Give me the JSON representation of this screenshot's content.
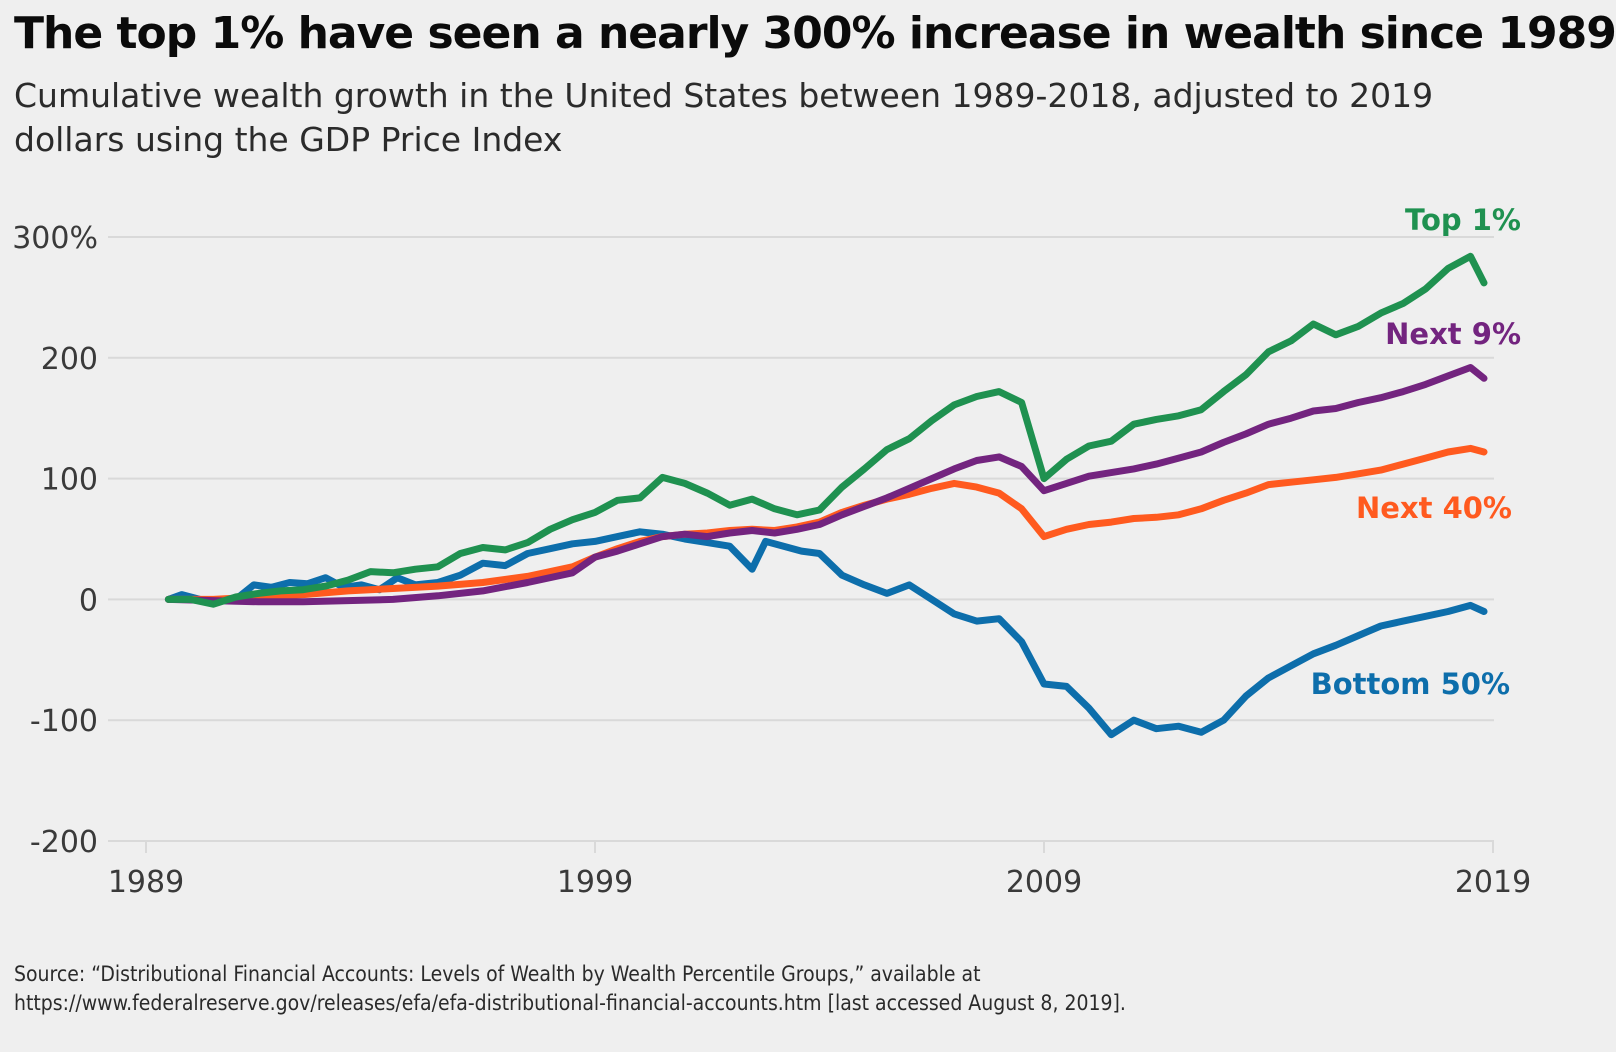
{
  "title": "The top 1% have seen a nearly 300% increase in wealth since 1989",
  "subtitle": "Cumulative wealth growth in the United States between 1989-2018, adjusted to 2019 dollars using the GDP Price Index",
  "source": {
    "line1": "Source: “Distributional Financial Accounts: Levels of Wealth by Wealth Percentile Groups,” available at",
    "line2": "https://www.federalreserve.gov/releases/efa/efa-distributional-financial-accounts.htm [last accessed August 8, 2019]."
  },
  "colors": {
    "background": "#efefef",
    "grid": "#d9d9d9",
    "axis_text": "#3a3a3a",
    "top1": "#1f9150",
    "next9": "#73247f",
    "next40": "#ff5a1f",
    "bottom50": "#0d6eab"
  },
  "chart_data": {
    "type": "line",
    "x_unit": "year",
    "xlim": [
      1989,
      2019
    ],
    "ylim": [
      -200,
      300
    ],
    "x_ticks": [
      1989,
      1999,
      2009,
      2019
    ],
    "x_tick_labels": [
      "1989",
      "1999",
      "2009",
      "2019"
    ],
    "y_ticks": [
      300,
      200,
      100,
      0,
      -100,
      -200
    ],
    "y_tick_labels": [
      "300%",
      "200",
      "100",
      "0",
      "-100",
      "-200"
    ],
    "grid": true,
    "legend": "direct labels at line ends",
    "series": [
      {
        "name": "Top 1%",
        "color": "#1f9150",
        "points": [
          [
            1989.5,
            0
          ],
          [
            1990.0,
            0
          ],
          [
            1990.5,
            -4
          ],
          [
            1991.0,
            2
          ],
          [
            1991.5,
            5
          ],
          [
            1992.0,
            7
          ],
          [
            1992.5,
            8
          ],
          [
            1993.0,
            11
          ],
          [
            1993.5,
            16
          ],
          [
            1994.0,
            23
          ],
          [
            1994.5,
            22
          ],
          [
            1995.0,
            25
          ],
          [
            1995.5,
            27
          ],
          [
            1996.0,
            38
          ],
          [
            1996.5,
            43
          ],
          [
            1997.0,
            41
          ],
          [
            1997.5,
            47
          ],
          [
            1998.0,
            58
          ],
          [
            1998.5,
            66
          ],
          [
            1999.0,
            72
          ],
          [
            1999.5,
            82
          ],
          [
            2000.0,
            84
          ],
          [
            2000.5,
            101
          ],
          [
            2001.0,
            96
          ],
          [
            2001.5,
            88
          ],
          [
            2002.0,
            78
          ],
          [
            2002.5,
            83
          ],
          [
            2003.0,
            75
          ],
          [
            2003.5,
            70
          ],
          [
            2004.0,
            74
          ],
          [
            2004.5,
            93
          ],
          [
            2005.0,
            108
          ],
          [
            2005.5,
            124
          ],
          [
            2006.0,
            133
          ],
          [
            2006.5,
            148
          ],
          [
            2007.0,
            161
          ],
          [
            2007.5,
            168
          ],
          [
            2008.0,
            172
          ],
          [
            2008.5,
            163
          ],
          [
            2009.0,
            100
          ],
          [
            2009.5,
            116
          ],
          [
            2010.0,
            127
          ],
          [
            2010.5,
            131
          ],
          [
            2011.0,
            145
          ],
          [
            2011.5,
            149
          ],
          [
            2012.0,
            152
          ],
          [
            2012.5,
            157
          ],
          [
            2013.0,
            172
          ],
          [
            2013.5,
            186
          ],
          [
            2014.0,
            205
          ],
          [
            2014.5,
            214
          ],
          [
            2015.0,
            228
          ],
          [
            2015.5,
            219
          ],
          [
            2016.0,
            226
          ],
          [
            2016.5,
            237
          ],
          [
            2017.0,
            245
          ],
          [
            2017.5,
            257
          ],
          [
            2018.0,
            274
          ],
          [
            2018.5,
            284
          ],
          [
            2018.8,
            262
          ]
        ]
      },
      {
        "name": "Next 9%",
        "color": "#73247f",
        "points": [
          [
            1989.5,
            0
          ],
          [
            1990.5,
            -1
          ],
          [
            1991.5,
            -2
          ],
          [
            1992.5,
            -2
          ],
          [
            1993.5,
            -1
          ],
          [
            1994.5,
            0
          ],
          [
            1995.5,
            3
          ],
          [
            1996.5,
            7
          ],
          [
            1997.5,
            14
          ],
          [
            1998.5,
            22
          ],
          [
            1999.0,
            35
          ],
          [
            1999.5,
            40
          ],
          [
            2000.0,
            46
          ],
          [
            2000.5,
            52
          ],
          [
            2001.0,
            54
          ],
          [
            2001.5,
            52
          ],
          [
            2002.0,
            55
          ],
          [
            2002.5,
            57
          ],
          [
            2003.0,
            55
          ],
          [
            2003.5,
            58
          ],
          [
            2004.0,
            62
          ],
          [
            2004.5,
            70
          ],
          [
            2005.0,
            77
          ],
          [
            2005.5,
            84
          ],
          [
            2006.0,
            92
          ],
          [
            2006.5,
            100
          ],
          [
            2007.0,
            108
          ],
          [
            2007.5,
            115
          ],
          [
            2008.0,
            118
          ],
          [
            2008.5,
            110
          ],
          [
            2009.0,
            90
          ],
          [
            2009.5,
            96
          ],
          [
            2010.0,
            102
          ],
          [
            2010.5,
            105
          ],
          [
            2011.0,
            108
          ],
          [
            2011.5,
            112
          ],
          [
            2012.0,
            117
          ],
          [
            2012.5,
            122
          ],
          [
            2013.0,
            130
          ],
          [
            2013.5,
            137
          ],
          [
            2014.0,
            145
          ],
          [
            2014.5,
            150
          ],
          [
            2015.0,
            156
          ],
          [
            2015.5,
            158
          ],
          [
            2016.0,
            163
          ],
          [
            2016.5,
            167
          ],
          [
            2017.0,
            172
          ],
          [
            2017.5,
            178
          ],
          [
            2018.0,
            185
          ],
          [
            2018.5,
            192
          ],
          [
            2018.8,
            183
          ]
        ]
      },
      {
        "name": "Next 40%",
        "color": "#ff5a1f",
        "points": [
          [
            1989.5,
            0
          ],
          [
            1990.5,
            0
          ],
          [
            1991.5,
            2
          ],
          [
            1992.5,
            4
          ],
          [
            1993.5,
            7
          ],
          [
            1994.5,
            9
          ],
          [
            1995.5,
            11
          ],
          [
            1996.5,
            14
          ],
          [
            1997.5,
            19
          ],
          [
            1998.5,
            27
          ],
          [
            1999.0,
            35
          ],
          [
            1999.5,
            42
          ],
          [
            2000.0,
            48
          ],
          [
            2000.5,
            52
          ],
          [
            2001.0,
            54
          ],
          [
            2001.5,
            55
          ],
          [
            2002.0,
            57
          ],
          [
            2002.5,
            58
          ],
          [
            2003.0,
            57
          ],
          [
            2003.5,
            60
          ],
          [
            2004.0,
            64
          ],
          [
            2004.5,
            72
          ],
          [
            2005.0,
            78
          ],
          [
            2005.5,
            83
          ],
          [
            2006.0,
            87
          ],
          [
            2006.5,
            92
          ],
          [
            2007.0,
            96
          ],
          [
            2007.5,
            93
          ],
          [
            2008.0,
            88
          ],
          [
            2008.5,
            75
          ],
          [
            2009.0,
            52
          ],
          [
            2009.5,
            58
          ],
          [
            2010.0,
            62
          ],
          [
            2010.5,
            64
          ],
          [
            2011.0,
            67
          ],
          [
            2011.5,
            68
          ],
          [
            2012.0,
            70
          ],
          [
            2012.5,
            75
          ],
          [
            2013.0,
            82
          ],
          [
            2013.5,
            88
          ],
          [
            2014.0,
            95
          ],
          [
            2014.5,
            97
          ],
          [
            2015.0,
            99
          ],
          [
            2015.5,
            101
          ],
          [
            2016.0,
            104
          ],
          [
            2016.5,
            107
          ],
          [
            2017.0,
            112
          ],
          [
            2017.5,
            117
          ],
          [
            2018.0,
            122
          ],
          [
            2018.5,
            125
          ],
          [
            2018.8,
            122
          ]
        ]
      },
      {
        "name": "Bottom 50%",
        "color": "#0d6eab",
        "points": [
          [
            1989.5,
            0
          ],
          [
            1989.8,
            4
          ],
          [
            1990.2,
            0
          ],
          [
            1990.6,
            -1
          ],
          [
            1991.0,
            0
          ],
          [
            1991.4,
            12
          ],
          [
            1991.8,
            10
          ],
          [
            1992.2,
            14
          ],
          [
            1992.6,
            13
          ],
          [
            1993.0,
            18
          ],
          [
            1993.4,
            10
          ],
          [
            1993.8,
            12
          ],
          [
            1994.2,
            8
          ],
          [
            1994.6,
            18
          ],
          [
            1995.0,
            12
          ],
          [
            1995.5,
            14
          ],
          [
            1996.0,
            20
          ],
          [
            1996.5,
            30
          ],
          [
            1997.0,
            28
          ],
          [
            1997.5,
            38
          ],
          [
            1998.0,
            42
          ],
          [
            1998.5,
            46
          ],
          [
            1999.0,
            48
          ],
          [
            1999.5,
            52
          ],
          [
            2000.0,
            56
          ],
          [
            2000.5,
            54
          ],
          [
            2001.0,
            50
          ],
          [
            2001.5,
            47
          ],
          [
            2002.0,
            44
          ],
          [
            2002.5,
            25
          ],
          [
            2002.8,
            48
          ],
          [
            2003.2,
            44
          ],
          [
            2003.6,
            40
          ],
          [
            2004.0,
            38
          ],
          [
            2004.5,
            20
          ],
          [
            2005.0,
            12
          ],
          [
            2005.5,
            5
          ],
          [
            2006.0,
            12
          ],
          [
            2006.5,
            0
          ],
          [
            2007.0,
            -12
          ],
          [
            2007.5,
            -18
          ],
          [
            2008.0,
            -16
          ],
          [
            2008.5,
            -35
          ],
          [
            2009.0,
            -70
          ],
          [
            2009.5,
            -72
          ],
          [
            2010.0,
            -90
          ],
          [
            2010.5,
            -112
          ],
          [
            2011.0,
            -100
          ],
          [
            2011.5,
            -107
          ],
          [
            2012.0,
            -105
          ],
          [
            2012.5,
            -110
          ],
          [
            2013.0,
            -100
          ],
          [
            2013.5,
            -80
          ],
          [
            2014.0,
            -65
          ],
          [
            2014.5,
            -55
          ],
          [
            2015.0,
            -45
          ],
          [
            2015.5,
            -38
          ],
          [
            2016.0,
            -30
          ],
          [
            2016.5,
            -22
          ],
          [
            2017.0,
            -18
          ],
          [
            2017.5,
            -14
          ],
          [
            2018.0,
            -10
          ],
          [
            2018.5,
            -5
          ],
          [
            2018.8,
            -10
          ]
        ]
      }
    ]
  }
}
